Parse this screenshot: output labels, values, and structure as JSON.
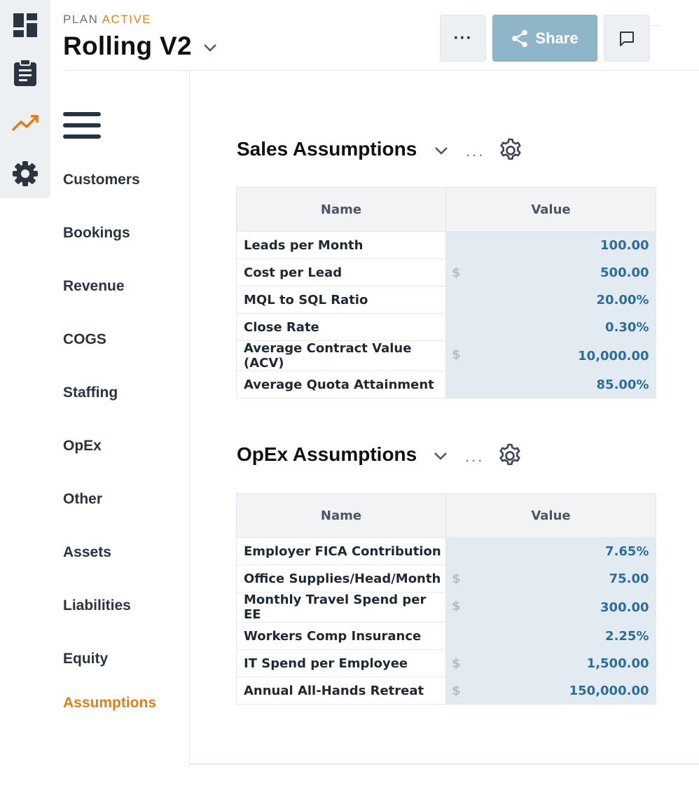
{
  "rail": {
    "items": [
      {
        "icon": "dashboard-icon"
      },
      {
        "icon": "clipboard-icon"
      },
      {
        "icon": "trending-up-icon",
        "color": "#e07f1a"
      },
      {
        "icon": "gear-icon"
      }
    ]
  },
  "header": {
    "plan_label": "PLAN",
    "plan_status": "ACTIVE",
    "title": "Rolling V2",
    "more_label": "···",
    "share_label": "Share"
  },
  "sidebar": {
    "items": [
      {
        "label": "Customers"
      },
      {
        "label": "Bookings"
      },
      {
        "label": "Revenue"
      },
      {
        "label": "COGS"
      },
      {
        "label": "Staffing"
      },
      {
        "label": "OpEx"
      },
      {
        "label": "Other"
      },
      {
        "label": "Assets"
      },
      {
        "label": "Liabilities"
      },
      {
        "label": "Equity"
      },
      {
        "label": "Assumptions",
        "active": true
      }
    ]
  },
  "sales": {
    "title": "Sales Assumptions",
    "more": "...",
    "col_name": "Name",
    "col_value": "Value",
    "rows": [
      {
        "name": "Leads per Month",
        "currency": "",
        "value": "100.00"
      },
      {
        "name": "Cost per Lead",
        "currency": "$",
        "value": "500.00"
      },
      {
        "name": "MQL to SQL Ratio",
        "currency": "",
        "value": "20.00%"
      },
      {
        "name": "Close Rate",
        "currency": "",
        "value": "0.30%"
      },
      {
        "name": "Average Contract Value (ACV)",
        "currency": "$",
        "value": "10,000.00"
      },
      {
        "name": "Average Quota Attainment",
        "currency": "",
        "value": "85.00%"
      }
    ]
  },
  "opex": {
    "title": "OpEx Assumptions",
    "more": "...",
    "col_name": "Name",
    "col_value": "Value",
    "rows": [
      {
        "name": "Employer FICA Contribution",
        "currency": "",
        "value": "7.65%"
      },
      {
        "name": "Office Supplies/Head/Month",
        "currency": "$",
        "value": "75.00"
      },
      {
        "name": "Monthly Travel Spend per EE",
        "currency": "$",
        "value": "300.00"
      },
      {
        "name": "Workers Comp Insurance",
        "currency": "",
        "value": "2.25%"
      },
      {
        "name": "IT Spend per Employee",
        "currency": "$",
        "value": "1,500.00"
      },
      {
        "name": "Annual All-Hands Retreat",
        "currency": "$",
        "value": "150,000.00"
      }
    ]
  },
  "colors": {
    "accent": "#e07f1a",
    "share_button": "#8fb5c9",
    "value_text": "#2e6d9a",
    "value_cell": "#e3ebf2"
  }
}
